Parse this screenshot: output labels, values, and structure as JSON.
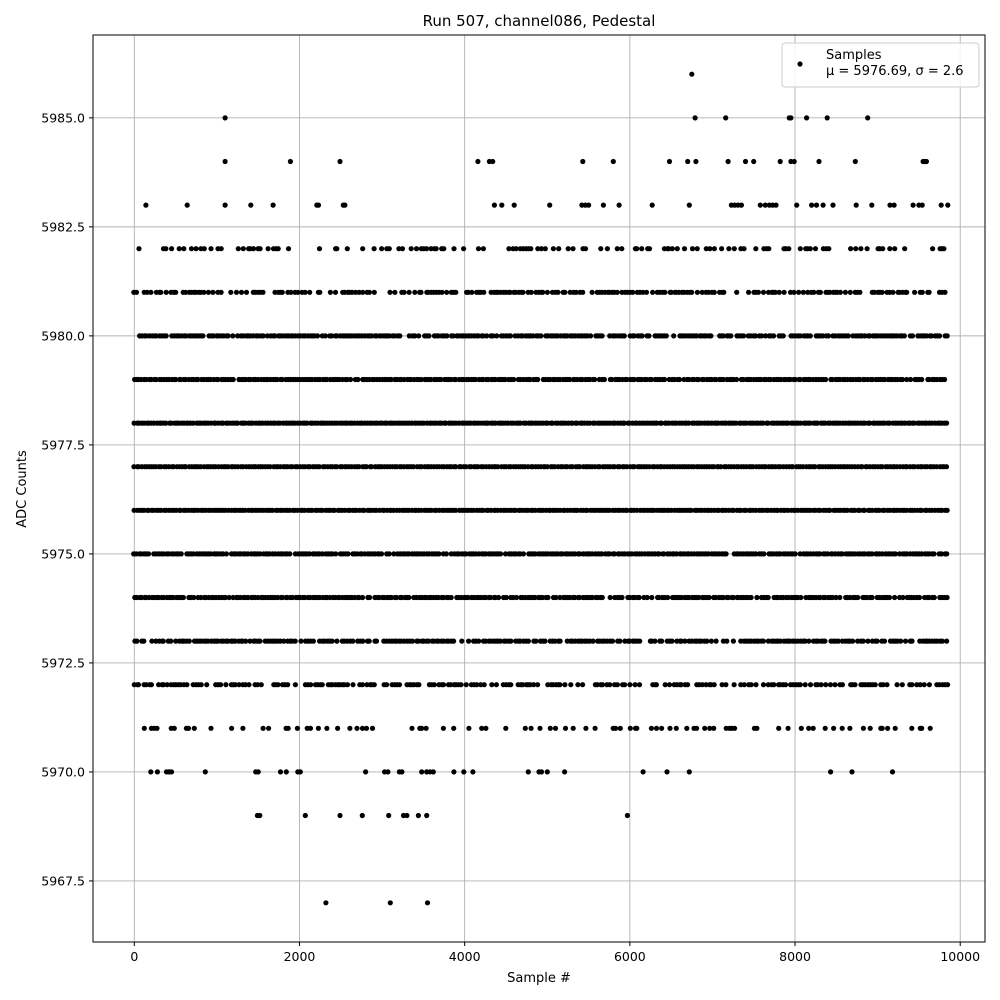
{
  "chart_data": {
    "type": "scatter",
    "title": "Run 507, channel086, Pedestal",
    "xlabel": "Sample #",
    "ylabel": "ADC Counts",
    "xlim": [
      -500,
      10300
    ],
    "ylim": [
      5966.1,
      5986.9
    ],
    "xticks": [
      0,
      2000,
      4000,
      6000,
      8000,
      10000
    ],
    "yticks": [
      5967.5,
      5970.0,
      5972.5,
      5975.0,
      5977.5,
      5980.0,
      5982.5,
      5985.0
    ],
    "xtick_labels": [
      "0",
      "2000",
      "4000",
      "6000",
      "8000",
      "10000"
    ],
    "ytick_labels": [
      "5967.5",
      "5970.0",
      "5972.5",
      "5975.0",
      "5977.5",
      "5980.0",
      "5982.5",
      "5985.0"
    ],
    "grid": true,
    "legend_position": "top-right",
    "series": [
      {
        "name": "Samples",
        "color": "#000000",
        "stats_label": "μ = 5976.69, σ = 2.6",
        "x_range": [
          0,
          9850
        ],
        "levels": [
          {
            "y": 5986,
            "x": [
              6750
            ]
          },
          {
            "y": 5985,
            "x": [
              1100,
              6790,
              7160,
              7930,
              7950,
              8140,
              8390,
              8880
            ]
          },
          {
            "y": 5984,
            "x": [
              1100,
              1890,
              2490,
              4160,
              4300,
              4340,
              5430,
              5800,
              6480,
              6700,
              6800,
              7190,
              7400,
              7500,
              7820,
              7950,
              7990,
              8290,
              8730,
              9550,
              9570,
              9590
            ]
          },
          {
            "y": 5983,
            "x": [
              140,
              640,
              1100,
              1410,
              1680,
              2210,
              2230,
              2530,
              2550,
              4360,
              4450,
              4600,
              5030,
              5420,
              5460,
              5500,
              5680,
              5870,
              6270,
              6720,
              7230,
              7270,
              7310,
              7350,
              7580,
              7640,
              7690,
              7730,
              7770,
              8020,
              8200,
              8260,
              8340,
              8460,
              8740,
              8930,
              9150,
              9200,
              9430,
              9500,
              9540,
              9770,
              9850
            ]
          }
        ],
        "dense_levels": [
          {
            "y": 5982,
            "density": 0.35
          },
          {
            "y": 5981,
            "density": 0.65
          },
          {
            "y": 5980,
            "density": 0.85
          },
          {
            "y": 5979,
            "density": 0.95
          },
          {
            "y": 5978,
            "density": 1.0
          },
          {
            "y": 5977,
            "density": 1.0
          },
          {
            "y": 5976,
            "density": 1.0
          },
          {
            "y": 5975,
            "density": 0.95
          },
          {
            "y": 5974,
            "density": 0.9
          },
          {
            "y": 5973,
            "density": 0.8
          },
          {
            "y": 5972,
            "density": 0.6
          },
          {
            "y": 5971,
            "density": 0.22
          }
        ],
        "sparse_levels": [
          {
            "y": 5970,
            "x": [
              200,
              280,
              390,
              420,
              450,
              860,
              1470,
              1500,
              1770,
              1840,
              1980,
              2010,
              2800,
              3030,
              3070,
              3210,
              3240,
              3480,
              3540,
              3580,
              3620,
              3870,
              3990,
              4100,
              4770,
              4900,
              4930,
              5000,
              5210,
              6160,
              6450,
              6720,
              8430,
              8690,
              9180
            ]
          },
          {
            "y": 5969,
            "x": [
              1490,
              1520,
              2070,
              2490,
              2760,
              3080,
              3260,
              3300,
              3440,
              3540,
              5970
            ]
          },
          {
            "y": 5967,
            "x": [
              2320,
              3100,
              3550
            ]
          }
        ]
      }
    ]
  }
}
